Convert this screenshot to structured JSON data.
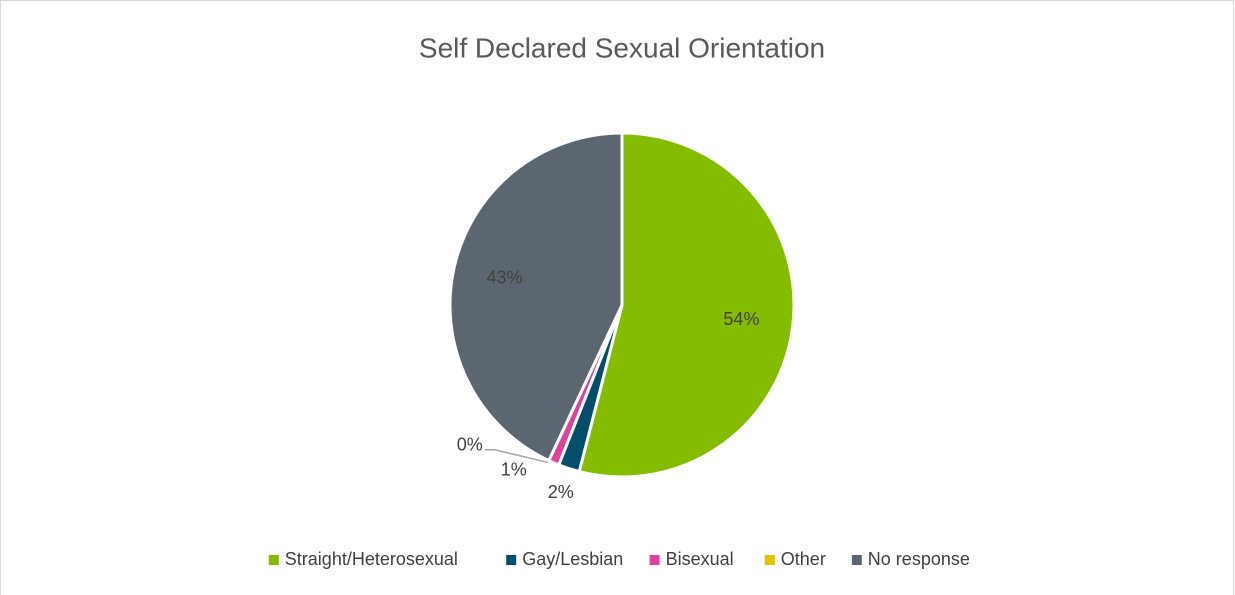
{
  "chart_data": {
    "type": "pie",
    "title": "Self Declared Sexual Orientation",
    "categories": [
      "Straight/Heterosexual",
      "Gay/Lesbian",
      "Bisexual",
      "Other",
      "No response"
    ],
    "values": [
      54,
      2,
      1,
      0,
      43
    ],
    "value_labels": [
      "54%",
      "2%",
      "1%",
      "0%",
      "43%"
    ],
    "colors": [
      "#84bd00",
      "#034e6a",
      "#e0409a",
      "#e3c300",
      "#5b6670"
    ],
    "legend": "bottom"
  }
}
